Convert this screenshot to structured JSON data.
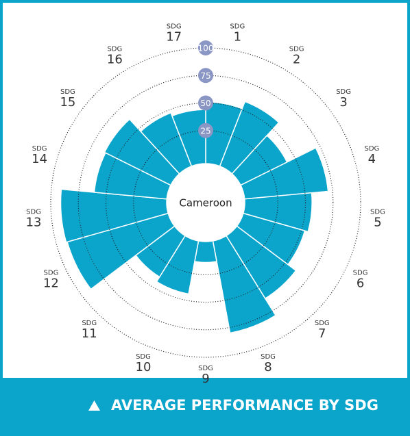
{
  "chart_data": {
    "type": "radial_bar",
    "center_label": "Cameroon",
    "footer": "AVERAGE PERFORMANCE BY SDG",
    "color": "#0ba5cc",
    "categories": [
      {
        "prefix": "SDG",
        "number": "1"
      },
      {
        "prefix": "SDG",
        "number": "2"
      },
      {
        "prefix": "SDG",
        "number": "3"
      },
      {
        "prefix": "SDG",
        "number": "4"
      },
      {
        "prefix": "SDG",
        "number": "5"
      },
      {
        "prefix": "SDG",
        "number": "6"
      },
      {
        "prefix": "SDG",
        "number": "7"
      },
      {
        "prefix": "SDG",
        "number": "8"
      },
      {
        "prefix": "SDG",
        "number": "9"
      },
      {
        "prefix": "SDG",
        "number": "10"
      },
      {
        "prefix": "SDG",
        "number": "11"
      },
      {
        "prefix": "SDG",
        "number": "12"
      },
      {
        "prefix": "SDG",
        "number": "13"
      },
      {
        "prefix": "SDG",
        "number": "14"
      },
      {
        "prefix": "SDG",
        "number": "15"
      },
      {
        "prefix": "SDG",
        "number": "16"
      },
      {
        "prefix": "SDG",
        "number": "17"
      }
    ],
    "values": [
      51,
      58,
      42,
      71,
      56,
      53,
      62,
      80,
      14,
      44,
      39,
      90,
      91,
      61,
      62,
      47,
      44
    ],
    "ylim": [
      0,
      100
    ],
    "yticks": [
      25,
      50,
      75,
      100
    ]
  }
}
